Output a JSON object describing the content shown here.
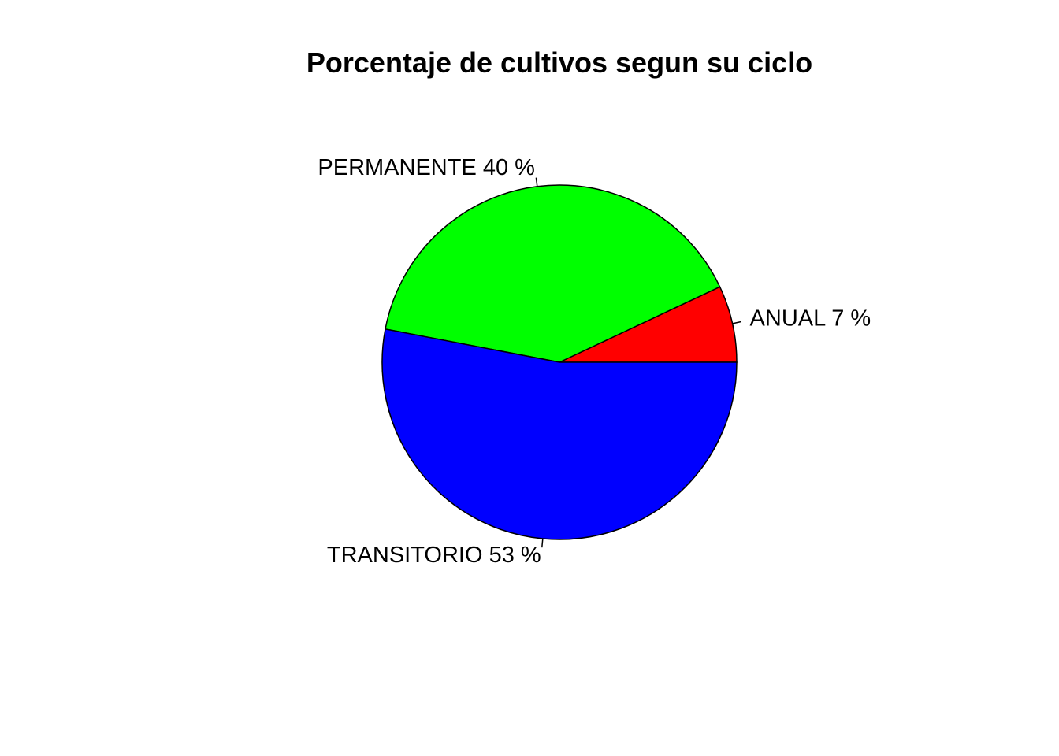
{
  "chart_data": {
    "type": "pie",
    "title": "Porcentaje de cultivos segun su ciclo",
    "slices": [
      {
        "category": "ANUAL",
        "value": 7,
        "label": "ANUAL 7 %",
        "color": "#ff0000"
      },
      {
        "category": "PERMANENTE",
        "value": 40,
        "label": "PERMANENTE 40 %",
        "color": "#00ff00"
      },
      {
        "category": "TRANSITORIO",
        "value": 53,
        "label": "TRANSITORIO 53 %",
        "color": "#0000ff"
      }
    ],
    "start_angle_deg": 0,
    "direction": "counterclockwise",
    "legend": "none"
  }
}
